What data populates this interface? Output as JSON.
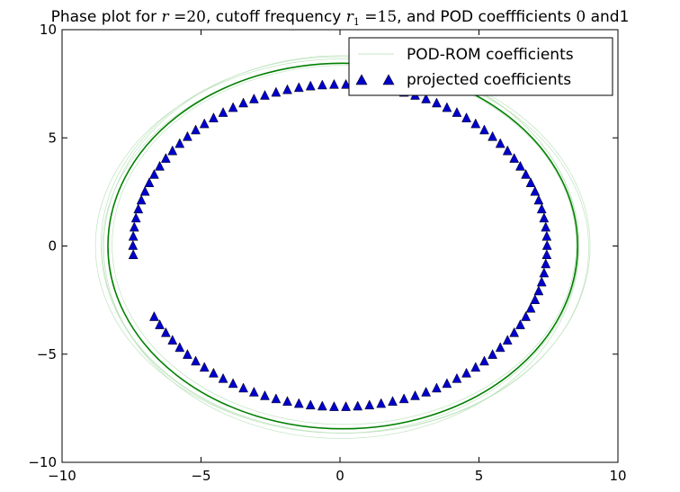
{
  "chart_data": {
    "type": "scatter",
    "title_parts": {
      "t1": "Phase plot for ",
      "m1": "r",
      "t2": " =20",
      "t3": ", cutoff frequency ",
      "m2": "r",
      "sub": "1",
      "t4": " =15",
      "t5": ", and POD coeffficients ",
      "t6": "0",
      "t7": " and1"
    },
    "xlim": [
      -10,
      10
    ],
    "ylim": [
      -10,
      10
    ],
    "x_ticks": [
      -10,
      -5,
      0,
      5,
      10
    ],
    "y_ticks": [
      -10,
      -5,
      0,
      5,
      10
    ],
    "x_tick_labels": [
      "−10",
      "−5",
      "0",
      "5",
      "10"
    ],
    "y_tick_labels": [
      "−10",
      "−5",
      "0",
      "5",
      "10"
    ],
    "grid": false,
    "legend_position": "upper-right",
    "series": [
      {
        "name": "POD-ROM coefficients",
        "kind": "line",
        "color": "#008000",
        "center": [
          0.1,
          0.0
        ],
        "radius_x": 8.45,
        "radius_y": 8.45,
        "faint_rings": [
          {
            "rx": 8.75,
            "ry": 8.55,
            "cx": 0.2,
            "cy": -0.1
          },
          {
            "rx": 8.6,
            "ry": 8.7,
            "cx": 0.0,
            "cy": 0.05
          },
          {
            "rx": 8.35,
            "ry": 8.3,
            "cx": 0.15,
            "cy": 0.05
          },
          {
            "rx": 8.9,
            "ry": 8.65,
            "cx": 0.1,
            "cy": 0.0
          },
          {
            "rx": 8.55,
            "ry": 8.85,
            "cx": 0.05,
            "cy": -0.05
          }
        ]
      },
      {
        "name": "projected coefficients",
        "kind": "marker",
        "marker": "triangle-up",
        "color": "#0000cc",
        "center": [
          0.0,
          0.0
        ],
        "radius_x": 7.45,
        "radius_y": 7.45,
        "point_count": 110,
        "gap_angle_deg": [
          185,
          205
        ]
      }
    ]
  }
}
